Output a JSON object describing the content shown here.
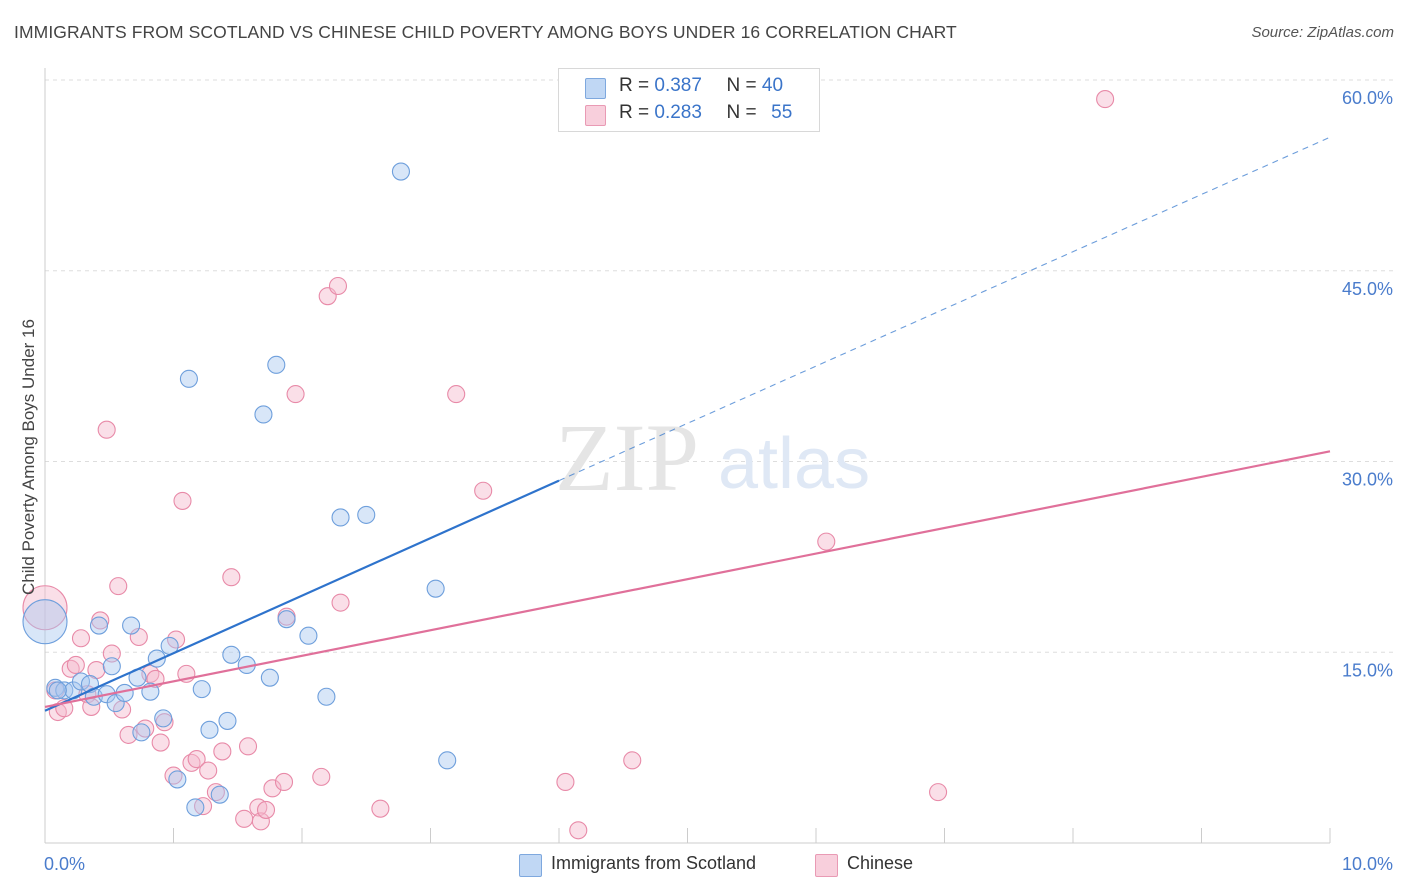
{
  "title": "IMMIGRANTS FROM SCOTLAND VS CHINESE CHILD POVERTY AMONG BOYS UNDER 16 CORRELATION CHART",
  "source": "Source: ZipAtlas.com",
  "watermark": {
    "zip": "ZIP",
    "atlas": "atlas"
  },
  "legend": {
    "rows": [
      {
        "r_label": "R =",
        "r_value": "0.387",
        "n_label": "N =",
        "n_value": "40",
        "color": "#a9c8f0"
      },
      {
        "r_label": "R =",
        "r_value": "0.283",
        "n_label": "N =",
        "n_value": "55",
        "color": "#f5b8cb"
      }
    ]
  },
  "bottom_legend": [
    {
      "label": "Immigrants from Scotland",
      "color": "#a9c8f0"
    },
    {
      "label": "Chinese",
      "color": "#f5b8cb"
    }
  ],
  "chart_data": {
    "type": "scatter",
    "title": "IMMIGRANTS FROM SCOTLAND VS CHINESE CHILD POVERTY AMONG BOYS UNDER 16 CORRELATION CHART",
    "xlabel": "",
    "ylabel": "Child Poverty Among Boys Under 16",
    "xlim": [
      0,
      10
    ],
    "ylim": [
      0,
      60
    ],
    "x_tick_labels": [
      {
        "value": 0,
        "label": "0.0%"
      },
      {
        "value": 10,
        "label": "10.0%"
      }
    ],
    "y_tick_labels": [
      {
        "value": 15,
        "label": "15.0%"
      },
      {
        "value": 30,
        "label": "30.0%"
      },
      {
        "value": 45,
        "label": "45.0%"
      },
      {
        "value": 60,
        "label": "60.0%"
      }
    ],
    "colors": {
      "blue_fill": "#a9c8f0",
      "blue_stroke": "#6e9fdc",
      "blue_line": "#2e73cc",
      "pink_fill": "#f5b8cb",
      "pink_stroke": "#e88aa8",
      "pink_line": "#e0709a",
      "grid": "#dddddd",
      "tick_label": "#4a7ccc"
    },
    "series": [
      {
        "name": "Immigrants from Scotland",
        "trend": {
          "x_start": 0.0,
          "y_start": 10.4,
          "x_solid_end": 4.0,
          "y_solid_end": 28.5,
          "x_dash_end": 10.0,
          "y_dash_end": 55.5
        },
        "points": [
          {
            "x": 0.0,
            "y": 17.4,
            "big": true
          },
          {
            "x": 0.08,
            "y": 12.2
          },
          {
            "x": 0.15,
            "y": 12.0
          },
          {
            "x": 0.22,
            "y": 12.0
          },
          {
            "x": 0.28,
            "y": 12.7
          },
          {
            "x": 0.35,
            "y": 12.5
          },
          {
            "x": 0.38,
            "y": 11.5
          },
          {
            "x": 0.42,
            "y": 17.1
          },
          {
            "x": 0.48,
            "y": 11.7
          },
          {
            "x": 0.52,
            "y": 13.9
          },
          {
            "x": 0.55,
            "y": 11.0
          },
          {
            "x": 0.62,
            "y": 11.8
          },
          {
            "x": 0.67,
            "y": 17.1
          },
          {
            "x": 0.72,
            "y": 13.0
          },
          {
            "x": 0.75,
            "y": 8.7
          },
          {
            "x": 0.82,
            "y": 11.9
          },
          {
            "x": 0.87,
            "y": 14.5
          },
          {
            "x": 0.92,
            "y": 9.8
          },
          {
            "x": 0.97,
            "y": 15.5
          },
          {
            "x": 1.03,
            "y": 5.0
          },
          {
            "x": 1.12,
            "y": 36.5
          },
          {
            "x": 1.17,
            "y": 2.8
          },
          {
            "x": 1.22,
            "y": 12.1
          },
          {
            "x": 1.28,
            "y": 8.9
          },
          {
            "x": 1.36,
            "y": 3.8
          },
          {
            "x": 1.42,
            "y": 9.6
          },
          {
            "x": 1.45,
            "y": 14.8
          },
          {
            "x": 1.57,
            "y": 14.0
          },
          {
            "x": 1.7,
            "y": 33.7
          },
          {
            "x": 1.75,
            "y": 13.0
          },
          {
            "x": 1.8,
            "y": 37.6
          },
          {
            "x": 1.88,
            "y": 17.6
          },
          {
            "x": 2.05,
            "y": 16.3
          },
          {
            "x": 2.19,
            "y": 11.5
          },
          {
            "x": 2.3,
            "y": 25.6
          },
          {
            "x": 2.5,
            "y": 25.8
          },
          {
            "x": 2.77,
            "y": 52.8
          },
          {
            "x": 3.04,
            "y": 20.0
          },
          {
            "x": 3.13,
            "y": 6.5
          },
          {
            "x": 0.1,
            "y": 12.0
          }
        ]
      },
      {
        "name": "Chinese",
        "trend": {
          "x_start": 0.0,
          "y_start": 10.7,
          "x_solid_end": 10.0,
          "y_solid_end": 30.8
        },
        "points": [
          {
            "x": 0.0,
            "y": 18.5,
            "big": true
          },
          {
            "x": 0.08,
            "y": 12.0
          },
          {
            "x": 0.1,
            "y": 10.3
          },
          {
            "x": 0.15,
            "y": 10.6
          },
          {
            "x": 0.2,
            "y": 13.7
          },
          {
            "x": 0.24,
            "y": 14.0
          },
          {
            "x": 0.28,
            "y": 16.1
          },
          {
            "x": 0.33,
            "y": 11.7
          },
          {
            "x": 0.36,
            "y": 10.7
          },
          {
            "x": 0.4,
            "y": 13.6
          },
          {
            "x": 0.43,
            "y": 17.5
          },
          {
            "x": 0.48,
            "y": 32.5
          },
          {
            "x": 0.52,
            "y": 14.9
          },
          {
            "x": 0.57,
            "y": 20.2
          },
          {
            "x": 0.6,
            "y": 10.5
          },
          {
            "x": 0.65,
            "y": 8.5
          },
          {
            "x": 0.73,
            "y": 16.2
          },
          {
            "x": 0.78,
            "y": 9.0
          },
          {
            "x": 0.82,
            "y": 13.3
          },
          {
            "x": 0.86,
            "y": 12.9
          },
          {
            "x": 0.9,
            "y": 7.9
          },
          {
            "x": 0.93,
            "y": 9.5
          },
          {
            "x": 1.0,
            "y": 5.3
          },
          {
            "x": 1.02,
            "y": 16.0
          },
          {
            "x": 1.07,
            "y": 26.9
          },
          {
            "x": 1.1,
            "y": 13.3
          },
          {
            "x": 1.14,
            "y": 6.3
          },
          {
            "x": 1.18,
            "y": 6.6
          },
          {
            "x": 1.23,
            "y": 2.9
          },
          {
            "x": 1.27,
            "y": 5.7
          },
          {
            "x": 1.33,
            "y": 4.0
          },
          {
            "x": 1.38,
            "y": 7.2
          },
          {
            "x": 1.45,
            "y": 20.9
          },
          {
            "x": 1.58,
            "y": 7.6
          },
          {
            "x": 1.66,
            "y": 2.8
          },
          {
            "x": 1.68,
            "y": 1.7
          },
          {
            "x": 1.72,
            "y": 2.6
          },
          {
            "x": 1.77,
            "y": 4.3
          },
          {
            "x": 1.86,
            "y": 4.8
          },
          {
            "x": 1.88,
            "y": 17.8
          },
          {
            "x": 1.95,
            "y": 35.3
          },
          {
            "x": 2.15,
            "y": 5.2
          },
          {
            "x": 2.2,
            "y": 43.0
          },
          {
            "x": 2.28,
            "y": 43.8
          },
          {
            "x": 2.3,
            "y": 18.9
          },
          {
            "x": 2.61,
            "y": 2.7
          },
          {
            "x": 3.2,
            "y": 35.3
          },
          {
            "x": 3.41,
            "y": 27.7
          },
          {
            "x": 4.05,
            "y": 4.8
          },
          {
            "x": 4.15,
            "y": 1.0
          },
          {
            "x": 4.57,
            "y": 6.5
          },
          {
            "x": 6.08,
            "y": 23.7
          },
          {
            "x": 6.95,
            "y": 4.0
          },
          {
            "x": 8.25,
            "y": 58.5
          },
          {
            "x": 1.55,
            "y": 1.9
          }
        ]
      }
    ]
  }
}
